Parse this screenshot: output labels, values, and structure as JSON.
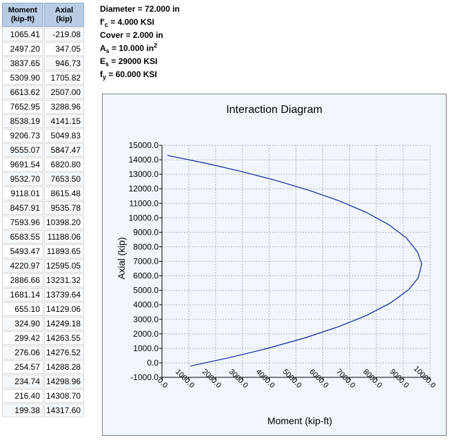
{
  "table": {
    "headers": {
      "moment_line1": "Moment",
      "moment_line2": "(kip-ft)",
      "axial_line1": "Axial",
      "axial_line2": "(kip)"
    },
    "rows": [
      [
        "1065.41",
        "-219.08"
      ],
      [
        "2497.20",
        "347.05"
      ],
      [
        "3837.65",
        "946.73"
      ],
      [
        "5309.90",
        "1705.82"
      ],
      [
        "6613.62",
        "2507.00"
      ],
      [
        "7652.95",
        "3288.96"
      ],
      [
        "8538.19",
        "4141.15"
      ],
      [
        "9206.73",
        "5049.83"
      ],
      [
        "9555.07",
        "5847.47"
      ],
      [
        "9691.54",
        "6820.80"
      ],
      [
        "9532.70",
        "7653.50"
      ],
      [
        "9118.01",
        "8615.48"
      ],
      [
        "8457.91",
        "9535.78"
      ],
      [
        "7593.96",
        "10398.20"
      ],
      [
        "6583.55",
        "11188.06"
      ],
      [
        "5493.47",
        "11893.65"
      ],
      [
        "4220.97",
        "12595.05"
      ],
      [
        "2886.66",
        "13231.32"
      ],
      [
        "1681.14",
        "13739.64"
      ],
      [
        "655.10",
        "14129.06"
      ],
      [
        "324.90",
        "14249.18"
      ],
      [
        "299.42",
        "14263.55"
      ],
      [
        "276.06",
        "14276.52"
      ],
      [
        "254.57",
        "14288.28"
      ],
      [
        "234.74",
        "14298.96"
      ],
      [
        "216.40",
        "14308.70"
      ],
      [
        "199.38",
        "14317.60"
      ]
    ]
  },
  "properties": {
    "diameter": {
      "label": "Diameter",
      "value": "72.000 in"
    },
    "fc": {
      "symbol": "f'",
      "sub": "c",
      "value": "4.000 KSI"
    },
    "cover": {
      "label": "Cover",
      "value": "2.000 in"
    },
    "as": {
      "symbol": "A",
      "sub": "s",
      "value": "10.000 in",
      "sup": "2"
    },
    "es": {
      "symbol": "E",
      "sub": "s",
      "value": "29000 KSI"
    },
    "fy": {
      "symbol": "f",
      "sub": "y",
      "value": "60.000 KSI"
    }
  },
  "colors": {
    "line": "#0a1f9e",
    "grid": "#b3b3b3",
    "panel_bg": "#f0f6fc",
    "header_bg": "#b8cce4"
  },
  "chart_data": {
    "type": "line",
    "title": "Interaction Diagram",
    "xlabel": "Moment (kip-ft)",
    "ylabel": "Axial (kip)",
    "xlim": [
      0,
      10000
    ],
    "ylim": [
      -1000,
      15000
    ],
    "x_ticks": [
      "0.0",
      "1000.0",
      "2000.0",
      "3000.0",
      "4000.0",
      "5000.0",
      "6000.0",
      "7000.0",
      "8000.0",
      "9000.0",
      "10000.0"
    ],
    "y_ticks": [
      "15000.0",
      "14000.0",
      "13000.0",
      "12000.0",
      "11000.0",
      "10000.0",
      "9000.0",
      "8000.0",
      "7000.0",
      "6000.0",
      "5000.0",
      "4000.0",
      "3000.0",
      "2000.0",
      "1000.0",
      "0.0",
      "-1000.0"
    ],
    "grid": true,
    "series": [
      {
        "x": [
          1065.41,
          2497.2,
          3837.65,
          5309.9,
          6613.62,
          7652.95,
          8538.19,
          9206.73,
          9555.07,
          9691.54,
          9532.7,
          9118.01,
          8457.91,
          7593.96,
          6583.55,
          5493.47,
          4220.97,
          2886.66,
          1681.14,
          655.1,
          324.9,
          299.42,
          276.06,
          254.57,
          234.74,
          216.4,
          199.38
        ],
        "y": [
          -219.08,
          347.05,
          946.73,
          1705.82,
          2507.0,
          3288.96,
          4141.15,
          5049.83,
          5847.47,
          6820.8,
          7653.5,
          8615.48,
          9535.78,
          10398.2,
          11188.06,
          11893.65,
          12595.05,
          13231.32,
          13739.64,
          14129.06,
          14249.18,
          14263.55,
          14276.52,
          14288.28,
          14298.96,
          14308.7,
          14317.6
        ]
      }
    ]
  }
}
